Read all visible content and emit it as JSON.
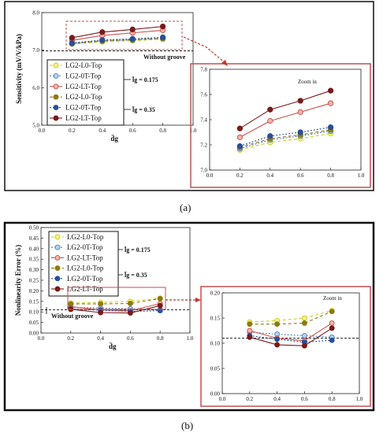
{
  "panel_a": {
    "caption": "(a)",
    "annotation_without_groove": "Without groove",
    "group_label_1": "l̄g = 0.175",
    "group_label_2": "l̄g = 0.35",
    "zoom_label": "Zoom in"
  },
  "panel_b": {
    "caption": "(b)",
    "annotation_without_groove": "Without groove",
    "group_label_1": "l̄g = 0.175",
    "group_label_2": "l̄g = 0.35",
    "zoom_label": "Zoom in"
  },
  "colors": {
    "L0": "#cccc22",
    "0T": "#4d7fc0",
    "LT": "#c8504a",
    "L0_dark": "#8c7a10",
    "0T_dark": "#2a4f9a",
    "LT_dark": "#7a1a1a",
    "zoom_box": "#c05050",
    "arrow": "#c0392b"
  },
  "chart_data": [
    {
      "id": "a_main",
      "type": "line",
      "xlabel": "d̄g",
      "ylabel": "Sensitivity (mV/V/kPa)",
      "xlim": [
        0.0,
        1.0
      ],
      "ylim": [
        5.0,
        8.0
      ],
      "xticks": [
        "0.0",
        "0.2",
        "0.4",
        "0.6",
        "0.8",
        "1.0"
      ],
      "yticks": [
        "5.0",
        "6.0",
        "7.0",
        "8.0"
      ],
      "x": [
        0.2,
        0.4,
        0.6,
        0.8
      ],
      "reference_line": 6.98,
      "legend_placement": "lower-left",
      "series": [
        {
          "name": "LG2-L0-Top",
          "group": "0.175",
          "values": [
            7.16,
            7.22,
            7.25,
            7.29
          ]
        },
        {
          "name": "LG2-0T-Top",
          "group": "0.175",
          "values": [
            7.17,
            7.24,
            7.27,
            7.31
          ]
        },
        {
          "name": "LG2-LT-Top",
          "group": "0.175",
          "values": [
            7.26,
            7.39,
            7.46,
            7.53
          ]
        },
        {
          "name": "LG2-L0-Top",
          "group": "0.35",
          "values": [
            7.18,
            7.25,
            7.28,
            7.32
          ]
        },
        {
          "name": "LG2-0T-Top",
          "group": "0.35",
          "values": [
            7.19,
            7.27,
            7.3,
            7.34
          ]
        },
        {
          "name": "LG2-LT-Top",
          "group": "0.35",
          "values": [
            7.33,
            7.48,
            7.55,
            7.63
          ]
        }
      ]
    },
    {
      "id": "a_zoom",
      "type": "line",
      "xlim": [
        0.0,
        1.0
      ],
      "ylim": [
        7.0,
        7.8
      ],
      "xticks": [
        "0.0",
        "0.2",
        "0.4",
        "0.6",
        "0.8",
        "1.0"
      ],
      "yticks": [
        "7.0",
        "7.2",
        "7.4",
        "7.6",
        "7.8"
      ],
      "x": [
        0.2,
        0.4,
        0.6,
        0.8
      ],
      "series_ref": "a_main"
    },
    {
      "id": "b_main",
      "type": "line",
      "xlabel": "d̄g",
      "ylabel": "Nonlinearity Error (%)",
      "xlim": [
        0.0,
        1.0
      ],
      "ylim": [
        0.0,
        0.5
      ],
      "xticks": [
        "0.0",
        "0.2",
        "0.4",
        "0.6",
        "0.8",
        "1.0"
      ],
      "yticks": [
        "0.00",
        "0.05",
        "0.10",
        "0.15",
        "0.20",
        "0.25",
        "0.30",
        "0.35",
        "0.40",
        "0.45",
        "0.50"
      ],
      "x": [
        0.2,
        0.4,
        0.6,
        0.8
      ],
      "reference_line": 0.11,
      "legend_placement": "upper-left",
      "series": [
        {
          "name": "LG2-L0-Top",
          "group": "0.175",
          "values": [
            0.142,
            0.145,
            0.15,
            0.165
          ]
        },
        {
          "name": "LG2-0T-Top",
          "group": "0.175",
          "values": [
            0.122,
            0.118,
            0.115,
            0.112
          ]
        },
        {
          "name": "LG2-LT-Top",
          "group": "0.175",
          "values": [
            0.125,
            0.11,
            0.105,
            0.14
          ]
        },
        {
          "name": "LG2-L0-Top",
          "group": "0.35",
          "values": [
            0.138,
            0.138,
            0.14,
            0.163
          ]
        },
        {
          "name": "LG2-0T-Top",
          "group": "0.35",
          "values": [
            0.115,
            0.108,
            0.102,
            0.106
          ]
        },
        {
          "name": "LG2-LT-Top",
          "group": "0.35",
          "values": [
            0.112,
            0.097,
            0.095,
            0.13
          ]
        }
      ]
    },
    {
      "id": "b_zoom",
      "type": "line",
      "xlim": [
        0.0,
        1.0
      ],
      "ylim": [
        0.0,
        0.2
      ],
      "xticks": [
        "0.0",
        "0.2",
        "0.4",
        "0.6",
        "0.8",
        "1.0"
      ],
      "yticks": [
        "0.00",
        "0.05",
        "0.10",
        "0.15",
        "0.20"
      ],
      "x": [
        0.2,
        0.4,
        0.6,
        0.8
      ],
      "series_ref": "b_main"
    }
  ]
}
